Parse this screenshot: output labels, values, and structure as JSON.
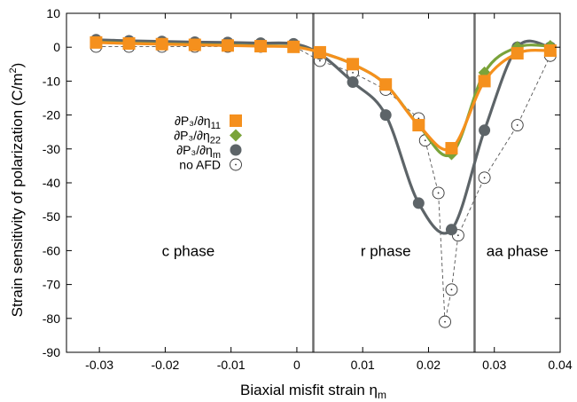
{
  "chart_data": {
    "type": "line",
    "xlabel": "Biaxial misfit strain η",
    "xlabel_sub": "m",
    "ylabel": "Strain sensitivity of polarization (C/m",
    "ylabel_sup": "2",
    "ylabel_end": ")",
    "xlim": [
      -0.035,
      0.04
    ],
    "ylim": [
      -90,
      10
    ],
    "xticks": [
      -0.03,
      -0.02,
      -0.01,
      0,
      0.01,
      0.02,
      0.03,
      0.04
    ],
    "xtick_labels": [
      "-0.03",
      "-0.02",
      "-0.01",
      "0",
      "0.01",
      "0.02",
      "0.03",
      "0.04"
    ],
    "yticks": [
      10,
      0,
      -10,
      -20,
      -30,
      -40,
      -50,
      -60,
      -70,
      -80,
      -90
    ],
    "ytick_labels": [
      "10",
      "0",
      "-10",
      "-20",
      "-30",
      "-40",
      "-50",
      "-60",
      "-70",
      "-80",
      "-90"
    ],
    "phase_boundaries": [
      0.0025,
      0.027
    ],
    "phase_labels": [
      {
        "text": "c phase",
        "x": -0.0165,
        "y": -60
      },
      {
        "text": "r phase",
        "x": 0.0135,
        "y": -60
      },
      {
        "text": "aa phase",
        "x": 0.0335,
        "y": -60
      }
    ],
    "legend_position": "middle-left",
    "series": [
      {
        "key": "noafd",
        "name_main": "no AFD",
        "name_sub": "",
        "marker": "open-circle-dot",
        "color": "#555555",
        "line": "dashed",
        "points": [
          [
            -0.0305,
            0.2
          ],
          [
            -0.0255,
            0.2
          ],
          [
            -0.0205,
            0.2
          ],
          [
            -0.0155,
            0.2
          ],
          [
            -0.0105,
            0.2
          ],
          [
            -0.0055,
            0.2
          ],
          [
            -0.0005,
            0.3
          ],
          [
            0.0035,
            -4
          ],
          [
            0.0085,
            -7.5
          ],
          [
            0.0135,
            -12.5
          ],
          [
            0.0185,
            -21
          ],
          [
            0.0195,
            -27.5
          ],
          [
            0.0215,
            -43
          ],
          [
            0.0225,
            -81
          ],
          [
            0.0235,
            -71.5
          ],
          [
            0.0245,
            -55.5
          ],
          [
            0.0285,
            -38.5
          ],
          [
            0.0335,
            -23
          ],
          [
            0.0385,
            -2.5
          ]
        ]
      },
      {
        "key": "eta_m",
        "name_main": "∂P₃/∂η",
        "name_sub": "m",
        "marker": "filled-circle",
        "color": "#5d6468",
        "line": "solid",
        "points": [
          [
            -0.0305,
            2.2
          ],
          [
            -0.0255,
            1.9
          ],
          [
            -0.0205,
            1.7
          ],
          [
            -0.0155,
            1.5
          ],
          [
            -0.0105,
            1.4
          ],
          [
            -0.0055,
            1.2
          ],
          [
            -0.0005,
            1
          ],
          [
            0.0035,
            -2
          ],
          [
            0.0085,
            -10.3
          ],
          [
            0.0135,
            -20
          ],
          [
            0.0185,
            -46
          ],
          [
            0.0235,
            -53.8
          ],
          [
            0.0285,
            -24.5
          ],
          [
            0.0335,
            0
          ],
          [
            0.0385,
            0
          ]
        ]
      },
      {
        "key": "eta_22",
        "name_main": "∂P₃/∂η",
        "name_sub": "22",
        "marker": "diamond",
        "color": "#7aa33a",
        "line": "solid",
        "points": [
          [
            -0.0305,
            1.5
          ],
          [
            -0.0255,
            1.2
          ],
          [
            -0.0205,
            1
          ],
          [
            -0.0155,
            0.8
          ],
          [
            -0.0105,
            0.6
          ],
          [
            -0.0055,
            0.4
          ],
          [
            -0.0005,
            0.2
          ],
          [
            0.0035,
            -1.5
          ],
          [
            0.0085,
            -5
          ],
          [
            0.0135,
            -11
          ],
          [
            0.0185,
            -23
          ],
          [
            0.0235,
            -31.5
          ],
          [
            0.0285,
            -7.5
          ],
          [
            0.0335,
            0
          ],
          [
            0.0385,
            0.3
          ]
        ]
      },
      {
        "key": "eta_11",
        "name_main": "∂P₃/∂η",
        "name_sub": "11",
        "marker": "square",
        "color": "#f5901d",
        "line": "solid",
        "points": [
          [
            -0.0305,
            1.4
          ],
          [
            -0.0255,
            1.1
          ],
          [
            -0.0205,
            0.9
          ],
          [
            -0.0155,
            0.7
          ],
          [
            -0.0105,
            0.5
          ],
          [
            -0.0055,
            0.3
          ],
          [
            -0.0005,
            0.1
          ],
          [
            0.0035,
            -1.5
          ],
          [
            0.0085,
            -5
          ],
          [
            0.0135,
            -11
          ],
          [
            0.0185,
            -23
          ],
          [
            0.0235,
            -29.8
          ],
          [
            0.0285,
            -10
          ],
          [
            0.0335,
            -1.8
          ],
          [
            0.0385,
            -1
          ]
        ]
      }
    ],
    "legend_order": [
      "eta_11",
      "eta_22",
      "eta_m",
      "noafd"
    ]
  }
}
